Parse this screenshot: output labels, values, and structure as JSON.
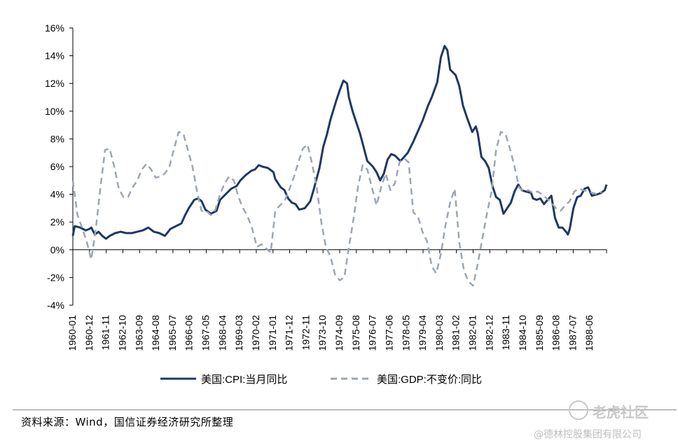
{
  "chart_data": {
    "type": "line",
    "title": "",
    "xlabel": "",
    "ylabel": "",
    "ylim": [
      -4,
      16
    ],
    "yticks": [
      "-4%",
      "-2%",
      "0%",
      "2%",
      "4%",
      "6%",
      "8%",
      "10%",
      "12%",
      "14%",
      "16%"
    ],
    "xticks": [
      "1960-01",
      "1960-12",
      "1961-11",
      "1962-10",
      "1963-09",
      "1964-08",
      "1965-07",
      "1966-06",
      "1967-05",
      "1968-04",
      "1969-03",
      "1970-02",
      "1971-01",
      "1971-12",
      "1972-11",
      "1973-10",
      "1974-09",
      "1975-08",
      "1976-07",
      "1977-06",
      "1978-05",
      "1979-04",
      "1980-03",
      "1981-02",
      "1982-01",
      "1982-12",
      "1983-11",
      "1984-10",
      "1985-09",
      "1986-08",
      "1987-07",
      "1988-06"
    ],
    "legend_position": "bottom",
    "grid": false,
    "series": [
      {
        "name": "美国:CPI:当月同比",
        "color": "#1f3864",
        "style": "solid",
        "points": [
          [
            1960.0,
            1.0
          ],
          [
            1960.1,
            1.7
          ],
          [
            1960.4,
            1.6
          ],
          [
            1960.7,
            1.4
          ],
          [
            1960.9,
            1.5
          ],
          [
            1961.0,
            1.6
          ],
          [
            1961.2,
            1.1
          ],
          [
            1961.4,
            1.3
          ],
          [
            1961.6,
            1.0
          ],
          [
            1961.8,
            0.8
          ],
          [
            1962.0,
            1.0
          ],
          [
            1962.3,
            1.2
          ],
          [
            1962.6,
            1.3
          ],
          [
            1962.9,
            1.2
          ],
          [
            1963.2,
            1.2
          ],
          [
            1963.5,
            1.3
          ],
          [
            1963.8,
            1.4
          ],
          [
            1964.1,
            1.6
          ],
          [
            1964.4,
            1.3
          ],
          [
            1964.7,
            1.2
          ],
          [
            1965.0,
            1.0
          ],
          [
            1965.3,
            1.5
          ],
          [
            1965.6,
            1.7
          ],
          [
            1965.9,
            1.9
          ],
          [
            1966.1,
            2.5
          ],
          [
            1966.3,
            3.0
          ],
          [
            1966.6,
            3.6
          ],
          [
            1966.8,
            3.7
          ],
          [
            1967.0,
            3.5
          ],
          [
            1967.2,
            2.9
          ],
          [
            1967.5,
            2.6
          ],
          [
            1967.8,
            2.8
          ],
          [
            1968.0,
            3.6
          ],
          [
            1968.3,
            4.0
          ],
          [
            1968.6,
            4.4
          ],
          [
            1968.9,
            4.6
          ],
          [
            1969.1,
            5.0
          ],
          [
            1969.4,
            5.4
          ],
          [
            1969.7,
            5.7
          ],
          [
            1969.9,
            5.8
          ],
          [
            1970.1,
            6.1
          ],
          [
            1970.3,
            6.0
          ],
          [
            1970.6,
            5.9
          ],
          [
            1970.9,
            5.6
          ],
          [
            1971.0,
            5.1
          ],
          [
            1971.3,
            4.5
          ],
          [
            1971.5,
            4.3
          ],
          [
            1971.7,
            3.7
          ],
          [
            1971.9,
            3.4
          ],
          [
            1972.1,
            3.3
          ],
          [
            1972.3,
            2.9
          ],
          [
            1972.6,
            3.0
          ],
          [
            1972.9,
            3.5
          ],
          [
            1973.1,
            4.4
          ],
          [
            1973.4,
            5.9
          ],
          [
            1973.6,
            7.4
          ],
          [
            1973.8,
            8.3
          ],
          [
            1974.0,
            9.4
          ],
          [
            1974.3,
            10.7
          ],
          [
            1974.5,
            11.5
          ],
          [
            1974.7,
            12.2
          ],
          [
            1974.9,
            12.0
          ],
          [
            1975.0,
            11.0
          ],
          [
            1975.2,
            10.0
          ],
          [
            1975.4,
            9.2
          ],
          [
            1975.6,
            8.4
          ],
          [
            1975.8,
            7.4
          ],
          [
            1976.0,
            6.4
          ],
          [
            1976.3,
            6.0
          ],
          [
            1976.5,
            5.6
          ],
          [
            1976.7,
            5.0
          ],
          [
            1976.9,
            5.5
          ],
          [
            1977.1,
            6.5
          ],
          [
            1977.3,
            6.9
          ],
          [
            1977.5,
            6.8
          ],
          [
            1977.8,
            6.4
          ],
          [
            1978.0,
            6.7
          ],
          [
            1978.2,
            7.0
          ],
          [
            1978.5,
            7.8
          ],
          [
            1978.8,
            8.7
          ],
          [
            1979.0,
            9.3
          ],
          [
            1979.3,
            10.4
          ],
          [
            1979.5,
            11.0
          ],
          [
            1979.8,
            12.1
          ],
          [
            1980.0,
            13.9
          ],
          [
            1980.2,
            14.7
          ],
          [
            1980.35,
            14.4
          ],
          [
            1980.5,
            13.0
          ],
          [
            1980.8,
            12.6
          ],
          [
            1981.0,
            11.8
          ],
          [
            1981.2,
            10.4
          ],
          [
            1981.4,
            9.6
          ],
          [
            1981.7,
            8.5
          ],
          [
            1981.9,
            8.9
          ],
          [
            1982.0,
            8.4
          ],
          [
            1982.2,
            6.7
          ],
          [
            1982.4,
            6.4
          ],
          [
            1982.6,
            5.9
          ],
          [
            1982.8,
            4.6
          ],
          [
            1983.0,
            3.8
          ],
          [
            1983.2,
            3.6
          ],
          [
            1983.4,
            2.6
          ],
          [
            1983.6,
            3.0
          ],
          [
            1983.8,
            3.4
          ],
          [
            1984.0,
            4.2
          ],
          [
            1984.2,
            4.7
          ],
          [
            1984.4,
            4.3
          ],
          [
            1984.6,
            4.2
          ],
          [
            1984.9,
            4.1
          ],
          [
            1985.0,
            3.7
          ],
          [
            1985.2,
            3.6
          ],
          [
            1985.4,
            3.7
          ],
          [
            1985.6,
            3.3
          ],
          [
            1985.8,
            3.6
          ],
          [
            1986.0,
            3.9
          ],
          [
            1986.2,
            2.3
          ],
          [
            1986.4,
            1.6
          ],
          [
            1986.6,
            1.6
          ],
          [
            1986.8,
            1.3
          ],
          [
            1986.9,
            1.1
          ],
          [
            1987.0,
            1.5
          ],
          [
            1987.2,
            3.0
          ],
          [
            1987.4,
            3.8
          ],
          [
            1987.6,
            3.9
          ],
          [
            1987.8,
            4.4
          ],
          [
            1988.0,
            4.5
          ],
          [
            1988.2,
            3.9
          ],
          [
            1988.5,
            4.0
          ],
          [
            1988.7,
            4.1
          ],
          [
            1988.9,
            4.3
          ],
          [
            1989.0,
            4.7
          ]
        ]
      },
      {
        "name": "美国:GDP:不变价:同比",
        "color": "#9aa6b6",
        "style": "dashed",
        "points": [
          [
            1960.0,
            5.0
          ],
          [
            1960.25,
            2.5
          ],
          [
            1960.5,
            1.6
          ],
          [
            1960.75,
            0.6
          ],
          [
            1961.0,
            -0.7
          ],
          [
            1961.25,
            1.5
          ],
          [
            1961.5,
            4.5
          ],
          [
            1961.75,
            7.2
          ],
          [
            1962.0,
            7.3
          ],
          [
            1962.25,
            6.0
          ],
          [
            1962.5,
            4.4
          ],
          [
            1962.75,
            3.8
          ],
          [
            1963.0,
            3.8
          ],
          [
            1963.25,
            4.5
          ],
          [
            1963.5,
            5.0
          ],
          [
            1963.75,
            5.8
          ],
          [
            1964.0,
            6.2
          ],
          [
            1964.25,
            5.8
          ],
          [
            1964.5,
            5.2
          ],
          [
            1964.75,
            5.3
          ],
          [
            1965.0,
            5.5
          ],
          [
            1965.25,
            6.0
          ],
          [
            1965.5,
            7.3
          ],
          [
            1965.75,
            8.5
          ],
          [
            1966.0,
            8.4
          ],
          [
            1966.25,
            7.2
          ],
          [
            1966.5,
            6.0
          ],
          [
            1966.75,
            4.2
          ],
          [
            1967.0,
            2.8
          ],
          [
            1967.25,
            2.8
          ],
          [
            1967.5,
            2.5
          ],
          [
            1967.75,
            2.9
          ],
          [
            1968.0,
            4.0
          ],
          [
            1968.25,
            4.8
          ],
          [
            1968.5,
            5.3
          ],
          [
            1968.75,
            5.0
          ],
          [
            1969.0,
            3.8
          ],
          [
            1969.25,
            3.0
          ],
          [
            1969.5,
            2.4
          ],
          [
            1969.75,
            1.5
          ],
          [
            1970.0,
            0.2
          ],
          [
            1970.25,
            0.4
          ],
          [
            1970.5,
            0.1
          ],
          [
            1970.75,
            -0.2
          ],
          [
            1971.0,
            2.8
          ],
          [
            1971.25,
            3.2
          ],
          [
            1971.5,
            3.5
          ],
          [
            1971.75,
            4.3
          ],
          [
            1972.0,
            5.2
          ],
          [
            1972.25,
            6.3
          ],
          [
            1972.5,
            7.3
          ],
          [
            1972.75,
            7.6
          ],
          [
            1973.0,
            6.2
          ],
          [
            1973.25,
            4.5
          ],
          [
            1973.5,
            2.0
          ],
          [
            1973.75,
            0.2
          ],
          [
            1974.0,
            -0.5
          ],
          [
            1974.25,
            -1.8
          ],
          [
            1974.5,
            -2.2
          ],
          [
            1974.75,
            -2.0
          ],
          [
            1975.0,
            0.2
          ],
          [
            1975.25,
            2.2
          ],
          [
            1975.5,
            4.6
          ],
          [
            1975.75,
            6.1
          ],
          [
            1976.0,
            5.8
          ],
          [
            1976.25,
            4.5
          ],
          [
            1976.5,
            3.2
          ],
          [
            1976.75,
            4.5
          ],
          [
            1977.0,
            5.5
          ],
          [
            1977.25,
            4.3
          ],
          [
            1977.5,
            4.8
          ],
          [
            1977.75,
            6.3
          ],
          [
            1978.0,
            6.6
          ],
          [
            1978.25,
            6.3
          ],
          [
            1978.5,
            2.7
          ],
          [
            1978.75,
            2.4
          ],
          [
            1979.0,
            1.3
          ],
          [
            1979.25,
            0.6
          ],
          [
            1979.5,
            -1.2
          ],
          [
            1979.75,
            -1.7
          ],
          [
            1980.0,
            -0.3
          ],
          [
            1980.25,
            1.8
          ],
          [
            1980.5,
            3.4
          ],
          [
            1980.75,
            4.4
          ],
          [
            1981.0,
            0.5
          ],
          [
            1981.25,
            -1.5
          ],
          [
            1981.5,
            -2.3
          ],
          [
            1981.75,
            -2.6
          ],
          [
            1982.0,
            -1.0
          ],
          [
            1982.25,
            0.8
          ],
          [
            1982.5,
            2.6
          ],
          [
            1982.75,
            4.2
          ],
          [
            1983.0,
            7.2
          ],
          [
            1983.25,
            8.5
          ],
          [
            1983.5,
            8.4
          ],
          [
            1983.75,
            7.3
          ],
          [
            1984.0,
            6.0
          ],
          [
            1984.25,
            4.5
          ],
          [
            1984.5,
            4.2
          ],
          [
            1984.75,
            4.3
          ],
          [
            1985.0,
            4.1
          ],
          [
            1985.25,
            4.2
          ],
          [
            1985.5,
            4.0
          ],
          [
            1985.75,
            3.7
          ],
          [
            1986.0,
            3.4
          ],
          [
            1986.25,
            3.0
          ],
          [
            1986.5,
            2.8
          ],
          [
            1986.75,
            3.2
          ],
          [
            1987.0,
            3.5
          ],
          [
            1987.25,
            4.2
          ],
          [
            1987.5,
            4.4
          ],
          [
            1987.75,
            4.3
          ],
          [
            1988.0,
            4.2
          ],
          [
            1988.25,
            4.1
          ],
          [
            1988.5,
            4.0
          ],
          [
            1988.75,
            4.2
          ]
        ]
      }
    ]
  },
  "legend": {
    "cpi_label": "美国:CPI:当月同比",
    "gdp_label": "美国:GDP:不变价:同比"
  },
  "footer": {
    "source": "资料来源：Wind，国信证券经济研究所整理",
    "brand": "老虎社区",
    "company": "@德林控股集团有限公司"
  }
}
